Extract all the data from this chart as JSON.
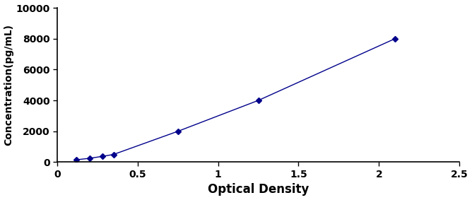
{
  "x": [
    0.12,
    0.2,
    0.28,
    0.35,
    0.75,
    1.25,
    2.1
  ],
  "y": [
    156,
    250,
    375,
    500,
    2000,
    4000,
    8000
  ],
  "line_color": "#00008B",
  "marker": "D",
  "marker_size": 4,
  "xlabel": "Optical Density",
  "ylabel": "Concentration(pg/mL)",
  "xlim": [
    0,
    2.5
  ],
  "ylim": [
    0,
    10000
  ],
  "xticks": [
    0,
    0.5,
    1.0,
    1.5,
    2.0,
    2.5
  ],
  "xtick_labels": [
    "0",
    "0.5",
    "1",
    "1.5",
    "2",
    "2.5"
  ],
  "yticks": [
    0,
    2000,
    4000,
    6000,
    8000,
    10000
  ],
  "ytick_labels": [
    "0",
    "2000",
    "4000",
    "6000",
    "8000",
    "10000"
  ],
  "line_style": "-",
  "line_width": 1.0,
  "xlabel_fontsize": 12,
  "ylabel_fontsize": 10,
  "tick_fontsize": 10,
  "figure_width": 6.68,
  "figure_height": 2.83,
  "dpi": 100
}
